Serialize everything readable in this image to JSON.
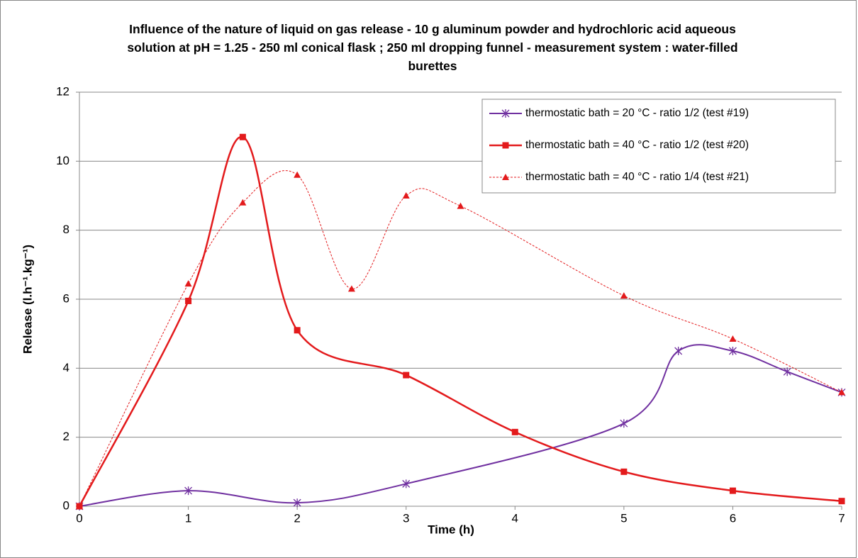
{
  "chart_data": {
    "type": "line",
    "title": "Influence of the nature of liquid on gas release - 10 g aluminum powder and hydrochloric acid aqueous solution at pH = 1.25 - 250 ml conical flask ; 250 ml dropping funnel - measurement system : water-filled burettes",
    "x_label": "Time (h)",
    "y_label": "Release (l.h⁻¹.kg⁻¹)",
    "xlim": [
      0,
      7
    ],
    "xticks": [
      0,
      1,
      2,
      3,
      4,
      5,
      6,
      7
    ],
    "ylim": [
      0,
      12
    ],
    "yticks": [
      0,
      2,
      4,
      6,
      8,
      10,
      12
    ],
    "grid": true,
    "smooth": true,
    "legend": "upper right",
    "series": [
      {
        "name": "thermostatic bath = 20 °C - ratio 1/2 (test #19)",
        "color": "#7030a0",
        "marker": "asterisk",
        "line_width": 2,
        "dashed": false,
        "x": [
          0,
          1,
          2,
          3,
          5,
          5.5,
          6,
          6.5,
          7
        ],
        "values": [
          0,
          0.45,
          0.1,
          0.65,
          2.4,
          4.5,
          4.5,
          3.9,
          3.3
        ]
      },
      {
        "name": "thermostatic bath = 40 °C - ratio 1/2 (test #20)",
        "color": "#e31a1c",
        "marker": "square",
        "line_width": 2.5,
        "dashed": false,
        "x": [
          0,
          1,
          1.5,
          2,
          3,
          4,
          5,
          6,
          7
        ],
        "values": [
          0,
          5.95,
          10.7,
          5.1,
          3.8,
          2.15,
          1.0,
          0.45,
          0.15
        ]
      },
      {
        "name": "thermostatic bath = 40 °C - ratio 1/4 (test #21)",
        "color": "#e31a1c",
        "marker": "triangle",
        "line_width": 1,
        "dashed": true,
        "x": [
          0,
          1,
          1.5,
          2,
          2.5,
          3,
          3.5,
          5,
          6,
          7
        ],
        "values": [
          0,
          6.45,
          8.8,
          9.6,
          6.3,
          9.0,
          8.7,
          6.1,
          4.85,
          3.3
        ]
      }
    ]
  }
}
